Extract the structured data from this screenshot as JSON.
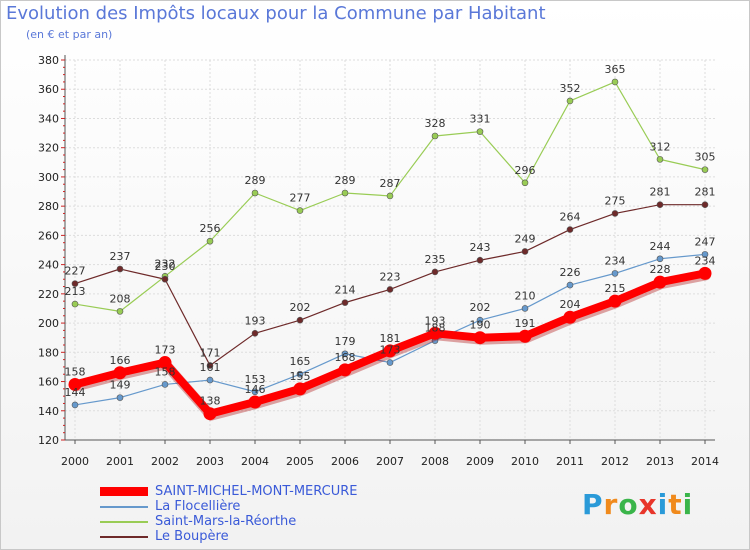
{
  "title": "Evolution des Impôts locaux pour la Commune par Habitant",
  "subtitle": "(en € et par an)",
  "colors": {
    "axis": "#555555",
    "grid": "#dddddd",
    "tick_text": "#222222"
  },
  "logo": {
    "text": "Proxiti",
    "letters": [
      "P",
      "r",
      "o",
      "x",
      "i",
      "t",
      "i"
    ],
    "colors": [
      "#2a9ad8",
      "#f08a1c",
      "#3ab54a",
      "#e8352a",
      "#2a9ad8",
      "#f08a1c",
      "#3ab54a"
    ]
  },
  "chart_data": {
    "type": "line",
    "title": "Evolution des Impôts locaux pour la Commune par Habitant",
    "subtitle": "(en € et par an)",
    "ylim": [
      120,
      380
    ],
    "yticks": [
      120,
      140,
      160,
      180,
      200,
      220,
      240,
      260,
      280,
      300,
      320,
      340,
      360,
      380
    ],
    "grid": true,
    "legend_position": "bottom-left",
    "x": [
      "2000",
      "2001",
      "2002",
      "2003",
      "2004",
      "2005",
      "2006",
      "2007",
      "2008",
      "2009",
      "2010",
      "2011",
      "2012",
      "2013",
      "2014"
    ],
    "series": [
      {
        "name": "SAINT-MICHEL-MONT-MERCURE",
        "color": "#ff0000",
        "values": [
          158,
          166,
          173,
          138,
          146,
          155,
          168,
          181,
          193,
          190,
          191,
          204,
          215,
          228,
          234
        ]
      },
      {
        "name": "La Flocellière",
        "color": "#6699cc",
        "values": [
          144,
          149,
          158,
          161,
          153,
          165,
          179,
          173,
          188,
          202,
          210,
          226,
          234,
          244,
          247
        ]
      },
      {
        "name": "Saint-Mars-la-Réorthe",
        "color": "#99cc55",
        "values": [
          213,
          208,
          232,
          256,
          289,
          277,
          289,
          287,
          328,
          331,
          296,
          352,
          365,
          312,
          305
        ]
      },
      {
        "name": "Le Boupère",
        "color": "#6e2a2a",
        "values": [
          227,
          237,
          230,
          171,
          193,
          202,
          214,
          223,
          235,
          243,
          249,
          264,
          275,
          281,
          281
        ]
      }
    ]
  }
}
